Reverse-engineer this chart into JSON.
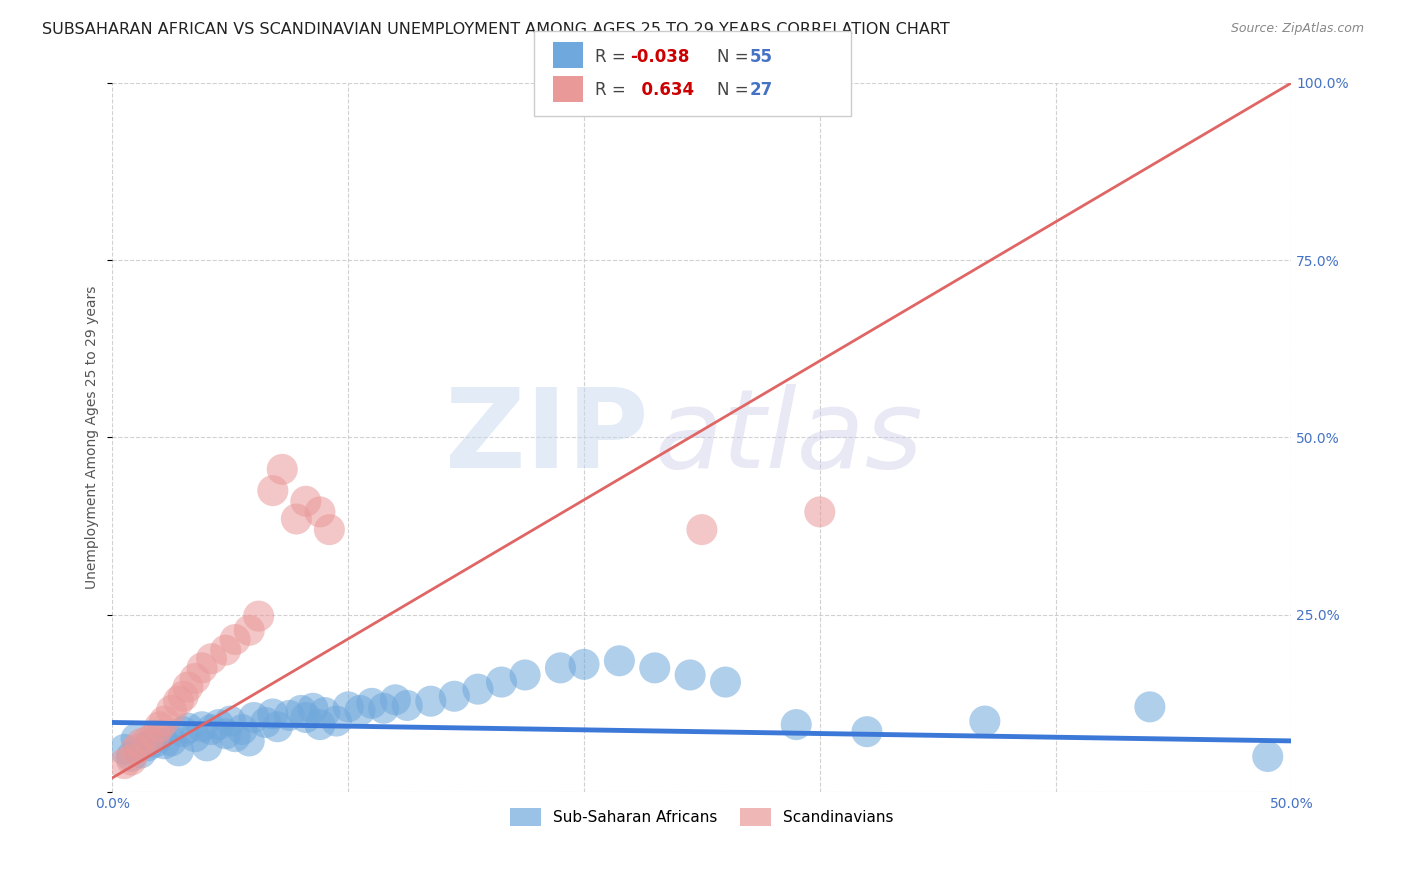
{
  "title": "SUBSAHARAN AFRICAN VS SCANDINAVIAN UNEMPLOYMENT AMONG AGES 25 TO 29 YEARS CORRELATION CHART",
  "source": "Source: ZipAtlas.com",
  "ylabel": "Unemployment Among Ages 25 to 29 years",
  "xlim": [
    0.0,
    0.5
  ],
  "ylim": [
    0.0,
    1.0
  ],
  "xticks": [
    0.0,
    0.1,
    0.2,
    0.3,
    0.4,
    0.5
  ],
  "yticks": [
    0.0,
    0.25,
    0.5,
    0.75,
    1.0
  ],
  "xticklabels": [
    "0.0%",
    "",
    "",
    "",
    "",
    "50.0%"
  ],
  "yticklabels": [
    "",
    "25.0%",
    "50.0%",
    "75.0%",
    "100.0%"
  ],
  "blue_color": "#6fa8dc",
  "pink_color": "#ea9999",
  "blue_line_color": "#3c78d8",
  "pink_line_color": "#e06666",
  "legend_R_blue": "-0.038",
  "legend_N_blue": "55",
  "legend_R_pink": "0.634",
  "legend_N_pink": "27",
  "watermark_zip": "ZIP",
  "watermark_atlas": "atlas",
  "title_fontsize": 11.5,
  "axis_label_fontsize": 10,
  "tick_fontsize": 10,
  "blue_scatter_x": [
    0.005,
    0.008,
    0.01,
    0.012,
    0.015,
    0.018,
    0.02,
    0.022,
    0.025,
    0.028,
    0.03,
    0.032,
    0.035,
    0.038,
    0.04,
    0.042,
    0.045,
    0.048,
    0.05,
    0.052,
    0.055,
    0.058,
    0.06,
    0.065,
    0.068,
    0.07,
    0.075,
    0.08,
    0.082,
    0.085,
    0.088,
    0.09,
    0.095,
    0.1,
    0.105,
    0.11,
    0.115,
    0.12,
    0.125,
    0.135,
    0.145,
    0.155,
    0.165,
    0.175,
    0.19,
    0.2,
    0.215,
    0.23,
    0.245,
    0.26,
    0.29,
    0.32,
    0.37,
    0.44,
    0.49
  ],
  "blue_scatter_y": [
    0.06,
    0.05,
    0.075,
    0.055,
    0.065,
    0.07,
    0.08,
    0.068,
    0.072,
    0.058,
    0.085,
    0.09,
    0.078,
    0.092,
    0.065,
    0.088,
    0.095,
    0.082,
    0.1,
    0.078,
    0.088,
    0.072,
    0.105,
    0.098,
    0.11,
    0.092,
    0.108,
    0.115,
    0.105,
    0.118,
    0.095,
    0.112,
    0.1,
    0.12,
    0.115,
    0.125,
    0.118,
    0.13,
    0.122,
    0.128,
    0.135,
    0.145,
    0.155,
    0.165,
    0.175,
    0.18,
    0.185,
    0.175,
    0.165,
    0.155,
    0.095,
    0.085,
    0.1,
    0.12,
    0.05
  ],
  "pink_scatter_x": [
    0.005,
    0.008,
    0.01,
    0.012,
    0.015,
    0.018,
    0.02,
    0.022,
    0.025,
    0.028,
    0.03,
    0.032,
    0.035,
    0.038,
    0.042,
    0.048,
    0.052,
    0.058,
    0.062,
    0.068,
    0.072,
    0.078,
    0.082,
    0.088,
    0.092,
    0.25,
    0.3
  ],
  "pink_scatter_y": [
    0.04,
    0.045,
    0.06,
    0.068,
    0.072,
    0.08,
    0.092,
    0.1,
    0.115,
    0.128,
    0.135,
    0.148,
    0.16,
    0.175,
    0.188,
    0.2,
    0.215,
    0.228,
    0.248,
    0.425,
    0.455,
    0.385,
    0.41,
    0.395,
    0.37,
    0.37,
    0.395
  ],
  "blue_trendline_x": [
    0.0,
    0.5
  ],
  "blue_trendline_y": [
    0.098,
    0.072
  ],
  "pink_trendline_x": [
    0.0,
    0.5
  ],
  "pink_trendline_y": [
    0.02,
    1.0
  ],
  "background_color": "#ffffff",
  "grid_color": "#cccccc"
}
